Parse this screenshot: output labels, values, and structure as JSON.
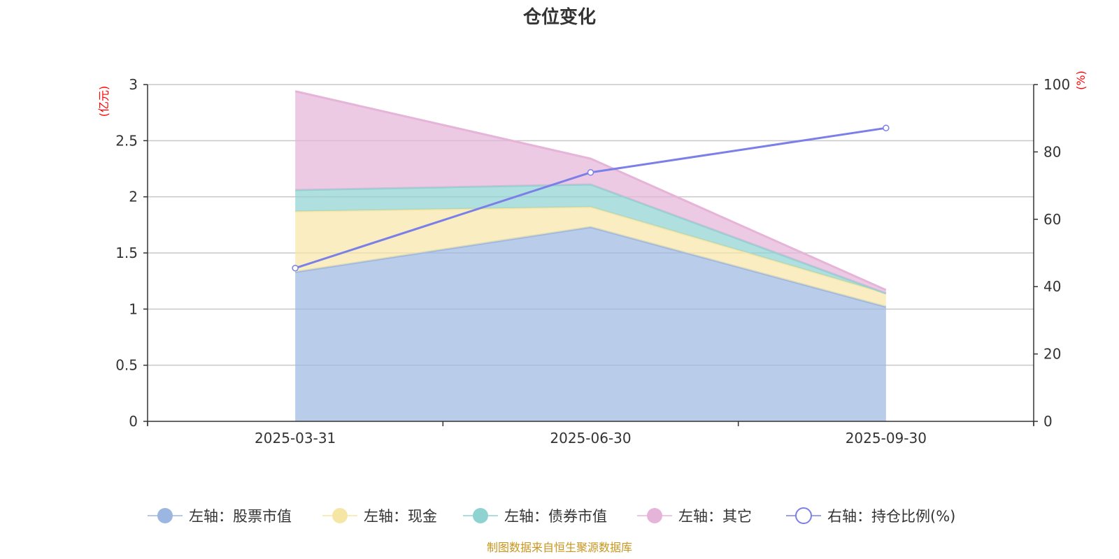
{
  "chart_data": {
    "type": "area",
    "title": "仓位变化",
    "categories": [
      "2025-03-31",
      "2025-06-30",
      "2025-09-30"
    ],
    "y_left": {
      "unit": "(亿元)",
      "range": [
        0,
        3
      ],
      "ticks": [
        "0",
        "0.5",
        "1",
        "1.5",
        "2",
        "2.5",
        "3"
      ]
    },
    "y_right": {
      "unit": "(%)",
      "range": [
        0,
        100
      ],
      "ticks": [
        "0",
        "20",
        "40",
        "60",
        "80",
        "100"
      ]
    },
    "stacked": true,
    "grid": true,
    "legend_position": "bottom",
    "series": [
      {
        "name": "左轴：股票市值",
        "axis": "left",
        "kind": "area",
        "color": "#9bb6e0",
        "values": [
          1.33,
          1.73,
          1.02
        ]
      },
      {
        "name": "左轴：现金",
        "axis": "left",
        "kind": "area",
        "color": "#f6e6a6",
        "values": [
          0.54,
          0.18,
          0.12
        ]
      },
      {
        "name": "左轴：债券市值",
        "axis": "left",
        "kind": "area",
        "color": "#8fd2d2",
        "values": [
          0.19,
          0.2,
          0.0
        ]
      },
      {
        "name": "左轴：其它",
        "axis": "left",
        "kind": "area",
        "color": "#e6b4d8",
        "values": [
          0.88,
          0.23,
          0.03
        ]
      },
      {
        "name": "右轴：持仓比例(%)",
        "axis": "right",
        "kind": "line",
        "color": "#7b7fe8",
        "values": [
          45.5,
          73.9,
          87.1
        ]
      }
    ],
    "source_note": "制图数据来自恒生聚源数据库"
  }
}
